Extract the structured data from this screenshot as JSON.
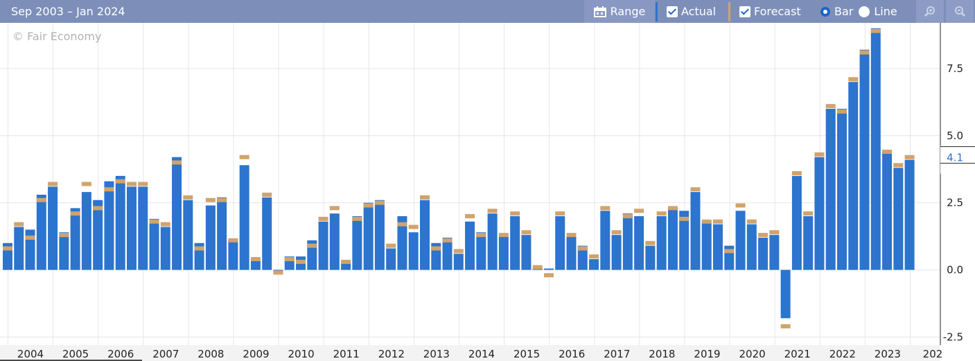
{
  "toolbar": {
    "range_title": "Sep 2003 – Jan 2024",
    "range_label": "Range",
    "range_icon": "calendar-icon",
    "actual_label": "Actual",
    "forecast_label": "Forecast",
    "bar_label": "Bar",
    "line_label": "Line",
    "zoom_in_icon": "zoom-in-icon",
    "zoom_out_icon": "zoom-out-icon"
  },
  "watermark": "© Fair Economy",
  "colors": {
    "actual": "#2c74cd",
    "forecast": "#d1a36b",
    "toolbar": "#7d8fb9",
    "grid": "#e6e6e6"
  },
  "chart_data": {
    "type": "bar",
    "title": "",
    "xlabel": "",
    "ylabel": "",
    "ylim": [
      -2.8,
      9.2
    ],
    "y_ticks": [
      "7.5",
      "5.0",
      "2.5",
      "0.0",
      "-2.5"
    ],
    "y_tick_values": [
      7.5,
      5.0,
      2.5,
      0.0,
      -2.5
    ],
    "current_value_label": "4.1",
    "current_value": 4.1,
    "x_tick_labels": [
      "2004",
      "2005",
      "2006",
      "2007",
      "2008",
      "2009",
      "2010",
      "2011",
      "2012",
      "2013",
      "2014",
      "2015",
      "2016",
      "2017",
      "2018",
      "2019",
      "2020",
      "2021",
      "2022",
      "2023",
      "202"
    ],
    "grid": true,
    "legend": "toolbar",
    "x_range": [
      "Sep 2003",
      "Jan 2024"
    ],
    "series": [
      {
        "name": "Actual",
        "values": [
          1.0,
          1.6,
          1.5,
          2.8,
          3.1,
          1.4,
          2.3,
          2.9,
          2.6,
          3.3,
          3.5,
          3.1,
          3.1,
          1.9,
          1.6,
          4.2,
          2.6,
          1.0,
          2.4,
          2.7,
          1.1,
          3.9,
          0.4,
          2.7,
          0,
          0.5,
          0.5,
          1.1,
          1.8,
          2.1,
          0.3,
          2.0,
          2.5,
          2.6,
          0.8,
          2.0,
          1.4,
          2.6,
          1.0,
          1.2,
          0.6,
          1.8,
          1.4,
          2.1,
          1.3,
          2.0,
          1.3,
          0.1,
          0.05,
          2.0,
          1.3,
          0.9,
          0.4,
          2.2,
          1.3,
          2.1,
          2.0,
          0.9,
          2.0,
          2.3,
          2.2,
          2.9,
          1.8,
          1.7,
          0.9,
          2.2,
          1.7,
          1.2,
          1.3,
          -1.8,
          3.5,
          2.0,
          4.2,
          6.0,
          6.0,
          7.0,
          8.2,
          9.0,
          4.4,
          3.8,
          4.1
        ]
      },
      {
        "name": "Forecast",
        "values": [
          0.8,
          1.7,
          1.2,
          2.6,
          3.2,
          1.3,
          2.1,
          3.2,
          2.3,
          3.0,
          3.3,
          3.2,
          3.2,
          1.8,
          1.7,
          4.0,
          2.7,
          0.8,
          2.6,
          2.6,
          1.1,
          4.2,
          0.4,
          2.8,
          -0.1,
          0.4,
          0.3,
          0.9,
          1.9,
          2.3,
          0.3,
          1.9,
          2.4,
          2.5,
          0.9,
          1.7,
          1.6,
          2.7,
          0.8,
          1.1,
          0.7,
          2.0,
          1.3,
          2.2,
          1.3,
          2.1,
          1.4,
          0.1,
          -0.2,
          2.1,
          1.3,
          0.8,
          0.5,
          2.3,
          1.4,
          2.0,
          2.2,
          1.0,
          2.1,
          2.3,
          1.9,
          3.0,
          1.8,
          1.8,
          0.7,
          2.4,
          1.8,
          1.3,
          1.4,
          -2.1,
          3.6,
          2.1,
          4.3,
          6.1,
          5.9,
          7.1,
          8.1,
          8.9,
          4.4,
          3.9,
          4.2
        ]
      }
    ]
  }
}
